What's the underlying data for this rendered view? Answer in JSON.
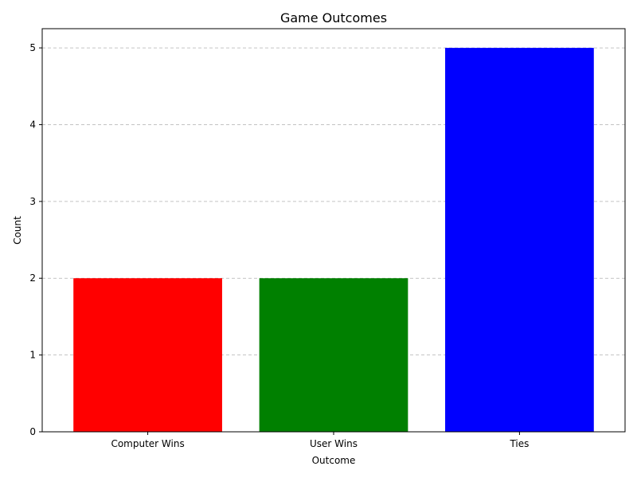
{
  "chart_data": {
    "type": "bar",
    "title": "Game Outcomes",
    "xlabel": "Outcome",
    "ylabel": "Count",
    "categories": [
      "Computer Wins",
      "User Wins",
      "Ties"
    ],
    "values": [
      2,
      2,
      5
    ],
    "colors": [
      "#ff0000",
      "#008000",
      "#0000ff"
    ],
    "ylim": [
      0,
      5.25
    ],
    "yticks": [
      0,
      1,
      2,
      3,
      4,
      5
    ],
    "grid": "y-dashed",
    "legend": "none"
  }
}
